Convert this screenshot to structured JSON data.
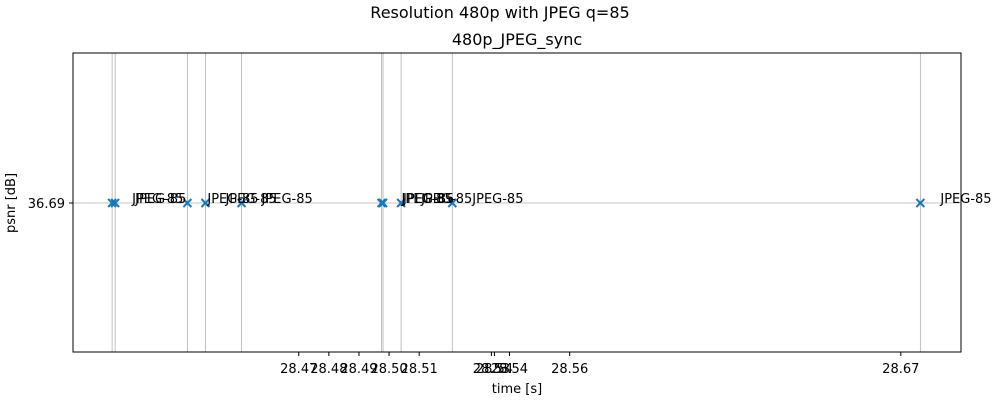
{
  "chart_data": {
    "type": "scatter",
    "suptitle": "Resolution 480p with JPEG q=85",
    "title": "480p_JPEG_sync",
    "xlabel": "time [s]",
    "ylabel": "psnr [dB]",
    "xlim": [
      28.395,
      28.69
    ],
    "x_ticks": [
      28.47,
      28.48,
      28.49,
      28.5,
      28.51,
      28.534,
      28.535,
      28.54,
      28.56,
      28.67
    ],
    "x_tick_labels": [
      "28.47",
      "28.48",
      "28.49",
      "28.50",
      "28.51",
      "28.53",
      "28.54",
      "28.54",
      "28.56",
      "28.67"
    ],
    "y_ticks": [
      36.69
    ],
    "y_tick_labels": [
      "36.69"
    ],
    "grid": true,
    "marker": "x",
    "marker_color": "#1f77b4",
    "points": [
      {
        "x": 28.408,
        "y": 36.69,
        "label": "JPEG-85"
      },
      {
        "x": 28.409,
        "y": 36.69,
        "label": "JPEG-85"
      },
      {
        "x": 28.433,
        "y": 36.69,
        "label": "JPEG-85"
      },
      {
        "x": 28.439,
        "y": 36.69,
        "label": "JPEG-85"
      },
      {
        "x": 28.451,
        "y": 36.69,
        "label": "JPEG-85"
      },
      {
        "x": 28.4975,
        "y": 36.69,
        "label": "JPEG-85"
      },
      {
        "x": 28.498,
        "y": 36.69,
        "label": "JPEG-85"
      },
      {
        "x": 28.504,
        "y": 36.69,
        "label": "JPEG-85"
      },
      {
        "x": 28.521,
        "y": 36.69,
        "label": "JPEG-85"
      },
      {
        "x": 28.6765,
        "y": 36.69,
        "label": "JPEG-85"
      }
    ]
  }
}
